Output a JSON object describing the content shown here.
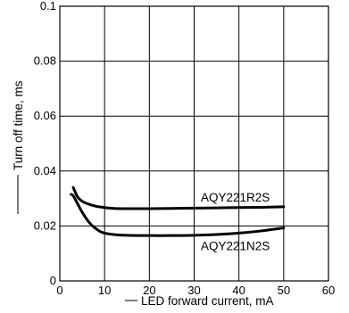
{
  "chart_data": {
    "type": "line",
    "xlabel": "LED forward current, mA",
    "ylabel": "Turn off time, ms",
    "xlim": [
      0,
      60
    ],
    "ylim": [
      0,
      0.1
    ],
    "grid": true,
    "x_ticks": [
      "0",
      "10",
      "20",
      "30",
      "40",
      "50",
      "60"
    ],
    "y_ticks": [
      "0",
      "0.02",
      "0.04",
      "0.06",
      "0.08",
      "0.1"
    ],
    "series": [
      {
        "name": "AQY221R2S",
        "x": [
          3,
          4,
          5,
          6,
          8,
          10,
          12,
          15,
          20,
          25,
          30,
          35,
          40,
          45,
          50
        ],
        "y": [
          0.034,
          0.0305,
          0.029,
          0.0282,
          0.0272,
          0.0267,
          0.0264,
          0.0263,
          0.0263,
          0.0264,
          0.0265,
          0.0266,
          0.0267,
          0.0268,
          0.027
        ]
      },
      {
        "name": "AQY221N2S",
        "x": [
          2.5,
          3,
          4,
          5,
          6,
          7,
          8,
          9,
          10,
          12,
          15,
          20,
          25,
          30,
          35,
          40,
          45,
          50
        ],
        "y": [
          0.0315,
          0.031,
          0.028,
          0.025,
          0.0225,
          0.0205,
          0.0191,
          0.018,
          0.0174,
          0.0169,
          0.0166,
          0.0165,
          0.0165,
          0.0166,
          0.0169,
          0.0174,
          0.0182,
          0.0193
        ]
      }
    ]
  }
}
